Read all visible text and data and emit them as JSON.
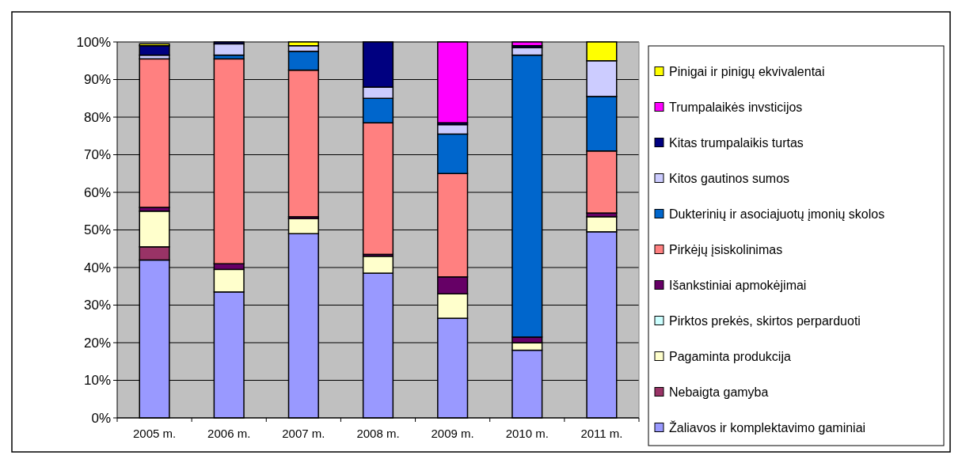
{
  "chart_data": {
    "type": "bar",
    "stacked": true,
    "categories": [
      "2005 m.",
      "2006 m.",
      "2007 m.",
      "2008 m.",
      "2009 m.",
      "2010 m.",
      "2011 m."
    ],
    "ylim": [
      0,
      100
    ],
    "yticks": [
      {
        "value": 0,
        "label": "0%"
      },
      {
        "value": 10,
        "label": "10%"
      },
      {
        "value": 20,
        "label": "20%"
      },
      {
        "value": 30,
        "label": "30%"
      },
      {
        "value": 40,
        "label": "40%"
      },
      {
        "value": 50,
        "label": "50%"
      },
      {
        "value": 60,
        "label": "60%"
      },
      {
        "value": 70,
        "label": "70%"
      },
      {
        "value": 80,
        "label": "80%"
      },
      {
        "value": 90,
        "label": "90%"
      },
      {
        "value": 100,
        "label": "100%"
      }
    ],
    "grid": "y",
    "legend": "right",
    "series": [
      {
        "name": "Žaliavos ir komplektavimo gaminiai",
        "color": "#9999ff",
        "values": [
          42,
          33.5,
          49,
          38.5,
          26.5,
          18,
          49.5
        ]
      },
      {
        "name": "Nebaigta gamyba",
        "color": "#993366",
        "values": [
          3.5,
          0,
          0,
          0,
          0,
          0,
          0
        ]
      },
      {
        "name": "Pagaminta produkcija",
        "color": "#ffffcc",
        "values": [
          9.5,
          6,
          4,
          4.5,
          6.5,
          2,
          4
        ]
      },
      {
        "name": "Pirktos prekės, skirtos perparduoti",
        "color": "#ccffff",
        "values": [
          0,
          0,
          0,
          0,
          0,
          0,
          0
        ]
      },
      {
        "name": "Išankstiniai apmokėjimai",
        "color": "#660066",
        "values": [
          1,
          1.5,
          0.5,
          0.5,
          4.5,
          1.5,
          1
        ]
      },
      {
        "name": "Pirkėjų įsiskolinimas",
        "color": "#ff8080",
        "values": [
          39.5,
          54.5,
          39,
          35,
          27.5,
          0,
          16.5
        ]
      },
      {
        "name": "Dukterinių ir asociajuotų įmonių skolos",
        "color": "#0066cc",
        "values": [
          null,
          1,
          5,
          6.5,
          10.5,
          75,
          14.5
        ]
      },
      {
        "name": "Kitos gautinos sumos",
        "color": "#ccccff",
        "values": [
          1,
          3,
          1.5,
          3,
          2.5,
          2,
          9.5
        ]
      },
      {
        "name": "Kitas trumpalaikis turtas",
        "color": "#000080",
        "values": [
          2.5,
          0.5,
          0,
          12,
          0.5,
          0.5,
          0
        ]
      },
      {
        "name": "Trumpalaikės invsticijos",
        "color": "#ff00ff",
        "values": [
          null,
          0,
          0,
          0,
          21.5,
          1,
          0
        ]
      },
      {
        "name": "Pinigai ir pinigų ekvivalentai",
        "color": "#ffff00",
        "values": [
          0.5,
          0,
          1,
          0,
          0,
          0,
          5
        ]
      }
    ]
  }
}
